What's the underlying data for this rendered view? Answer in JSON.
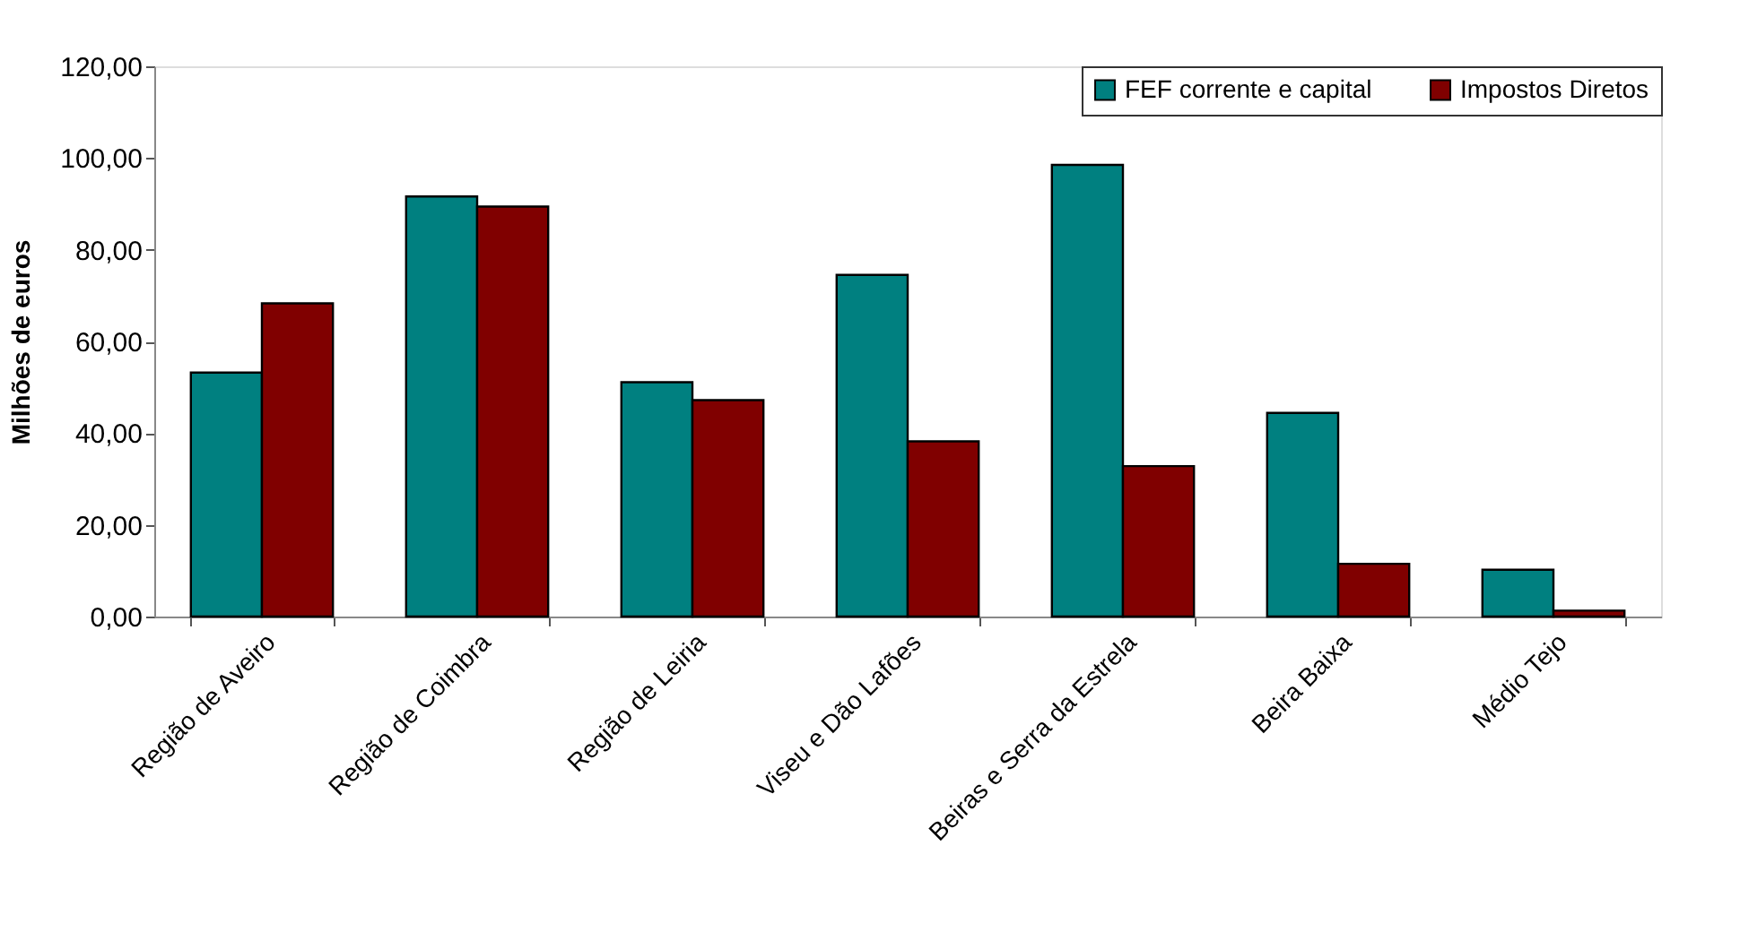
{
  "chart_data": {
    "type": "bar",
    "ylabel": "Milhões de euros",
    "categories": [
      "Região de Aveiro",
      "Região de Coimbra",
      "Região de Leiria",
      "Viseu e Dão Lafões",
      "Beiras e Serra da Estrela",
      "Beira Baixa",
      "Médio Tejo"
    ],
    "series": [
      {
        "name": "FEF corrente e capital",
        "color": "#008080",
        "values": [
          53.2,
          91.6,
          51.1,
          74.5,
          98.5,
          44.4,
          10.2
        ]
      },
      {
        "name": "Impostos Diretos",
        "color": "#800000",
        "values": [
          68.3,
          89.4,
          47.2,
          38.2,
          32.8,
          11.5,
          1.3
        ]
      }
    ],
    "ylim": [
      0,
      120
    ],
    "yticks": [
      {
        "value": 0,
        "label": "0,00"
      },
      {
        "value": 20,
        "label": "20,00"
      },
      {
        "value": 40,
        "label": "40,00"
      },
      {
        "value": 60,
        "label": "60,00"
      },
      {
        "value": 80,
        "label": "80,00"
      },
      {
        "value": 100,
        "label": "100,00"
      },
      {
        "value": 120,
        "label": "120,00"
      }
    ],
    "grid": false,
    "legend": "top right"
  }
}
